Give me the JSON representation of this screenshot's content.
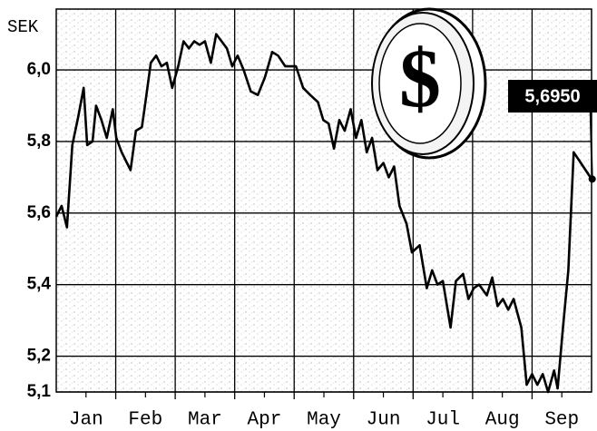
{
  "chart_data": {
    "type": "line",
    "y_unit": "SEK",
    "xlim": [
      0,
      9
    ],
    "xticks": [
      {
        "value": 0.5,
        "label": "Jan"
      },
      {
        "value": 1.5,
        "label": "Feb"
      },
      {
        "value": 2.5,
        "label": "Mar"
      },
      {
        "value": 3.5,
        "label": "Apr"
      },
      {
        "value": 4.5,
        "label": "May"
      },
      {
        "value": 5.5,
        "label": "Jun"
      },
      {
        "value": 6.5,
        "label": "Jul"
      },
      {
        "value": 7.5,
        "label": "Aug"
      },
      {
        "value": 8.5,
        "label": "Sep"
      }
    ],
    "ylim": [
      5.1,
      6.17
    ],
    "yticks": [
      {
        "value": 5.1,
        "label": "5,1"
      },
      {
        "value": 5.2,
        "label": "5,2"
      },
      {
        "value": 5.4,
        "label": "5,4"
      },
      {
        "value": 5.6,
        "label": "5,6"
      },
      {
        "value": 5.8,
        "label": "5,8"
      },
      {
        "value": 6.0,
        "label": "6,0"
      }
    ],
    "grid": true,
    "color": "#000000",
    "x": [
      0,
      0.09,
      0.18,
      0.27,
      0.37,
      0.46,
      0.52,
      0.61,
      0.67,
      0.76,
      0.85,
      0.95,
      1.01,
      1.1,
      1.25,
      1.34,
      1.44,
      1.5,
      1.59,
      1.68,
      1.77,
      1.86,
      1.95,
      2.05,
      2.14,
      2.23,
      2.32,
      2.41,
      2.5,
      2.6,
      2.69,
      2.78,
      2.87,
      2.96,
      3.05,
      3.15,
      3.27,
      3.39,
      3.51,
      3.63,
      3.73,
      3.85,
      4.03,
      4.15,
      4.27,
      4.4,
      4.49,
      4.58,
      4.67,
      4.76,
      4.85,
      4.95,
      5.04,
      5.13,
      5.22,
      5.31,
      5.4,
      5.5,
      5.59,
      5.68,
      5.77,
      5.89,
      5.98,
      6.11,
      6.23,
      6.32,
      6.41,
      6.5,
      6.63,
      6.72,
      6.84,
      6.93,
      7.02,
      7.11,
      7.24,
      7.33,
      7.42,
      7.51,
      7.6,
      7.69,
      7.82,
      7.91,
      8.0,
      8.09,
      8.18,
      8.27,
      8.37,
      8.43,
      8.52,
      8.61,
      8.7,
      8.82,
      8.98
    ],
    "values": [
      5.59,
      5.62,
      5.56,
      5.79,
      5.87,
      5.95,
      5.79,
      5.8,
      5.9,
      5.86,
      5.81,
      5.89,
      5.81,
      5.77,
      5.72,
      5.83,
      5.84,
      5.91,
      6.02,
      6.04,
      6.01,
      6.02,
      5.95,
      6.01,
      6.08,
      6.06,
      6.08,
      6.07,
      6.08,
      6.02,
      6.1,
      6.08,
      6.06,
      6.01,
      6.04,
      6.0,
      5.94,
      5.93,
      5.98,
      6.05,
      6.04,
      6.01,
      6.01,
      5.95,
      5.93,
      5.91,
      5.86,
      5.85,
      5.78,
      5.86,
      5.83,
      5.89,
      5.81,
      5.86,
      5.77,
      5.81,
      5.72,
      5.74,
      5.7,
      5.73,
      5.62,
      5.57,
      5.49,
      5.51,
      5.39,
      5.44,
      5.4,
      5.41,
      5.28,
      5.41,
      5.43,
      5.36,
      5.39,
      5.4,
      5.37,
      5.42,
      5.34,
      5.36,
      5.33,
      5.36,
      5.28,
      5.12,
      5.15,
      5.12,
      5.15,
      5.1,
      5.16,
      5.11,
      5.28,
      5.44,
      5.77,
      5.74,
      5.7
    ],
    "end_label": {
      "value": 5.695,
      "label": "5,6950"
    }
  }
}
